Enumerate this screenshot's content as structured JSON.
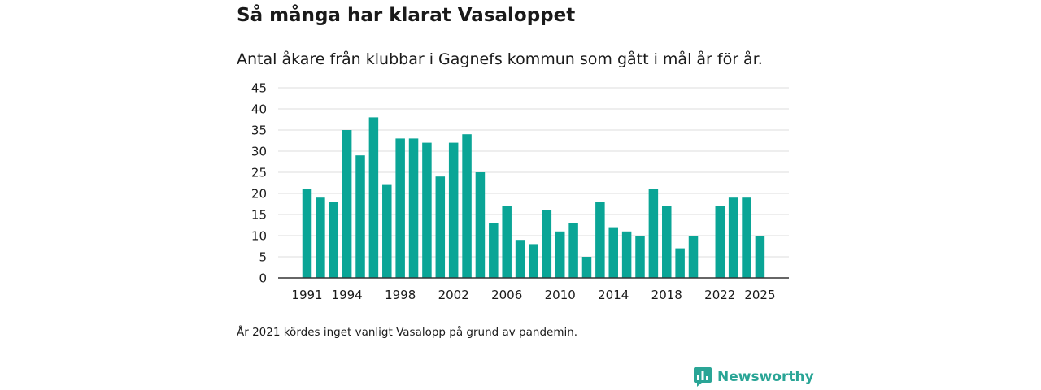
{
  "chart_data": {
    "type": "bar",
    "title": "Så många har klarat Vasaloppet",
    "subtitle": "Antal åkare från klubbar i Gagnefs kommun som gått i mål år för år.",
    "xlabel": "",
    "ylabel": "",
    "ylim": [
      0,
      45
    ],
    "yticks": [
      0,
      5,
      10,
      15,
      20,
      25,
      30,
      35,
      40,
      45
    ],
    "xtick_labels": [
      "1991",
      "1994",
      "1998",
      "2002",
      "2006",
      "2010",
      "2014",
      "2018",
      "2022",
      "2025"
    ],
    "grid": true,
    "bar_color": "#0aa596",
    "categories": [
      "1991",
      "1992",
      "1993",
      "1994",
      "1995",
      "1996",
      "1997",
      "1998",
      "1999",
      "2000",
      "2001",
      "2002",
      "2003",
      "2004",
      "2005",
      "2006",
      "2007",
      "2008",
      "2009",
      "2010",
      "2011",
      "2012",
      "2013",
      "2014",
      "2015",
      "2016",
      "2017",
      "2018",
      "2019",
      "2020",
      "2021",
      "2022",
      "2023",
      "2024",
      "2025"
    ],
    "values": [
      21,
      19,
      18,
      35,
      29,
      38,
      22,
      33,
      33,
      32,
      24,
      32,
      34,
      25,
      13,
      17,
      9,
      8,
      16,
      11,
      13,
      5,
      18,
      12,
      11,
      10,
      21,
      17,
      7,
      10,
      null,
      17,
      19,
      19,
      10
    ]
  },
  "footnote": "År 2021 kördes inget vanligt Vasalopp på grund av pandemin.",
  "brand": {
    "name": "Newsworthy",
    "color": "#2aa596",
    "icon": "bar-chart-speech-bubble-icon"
  }
}
